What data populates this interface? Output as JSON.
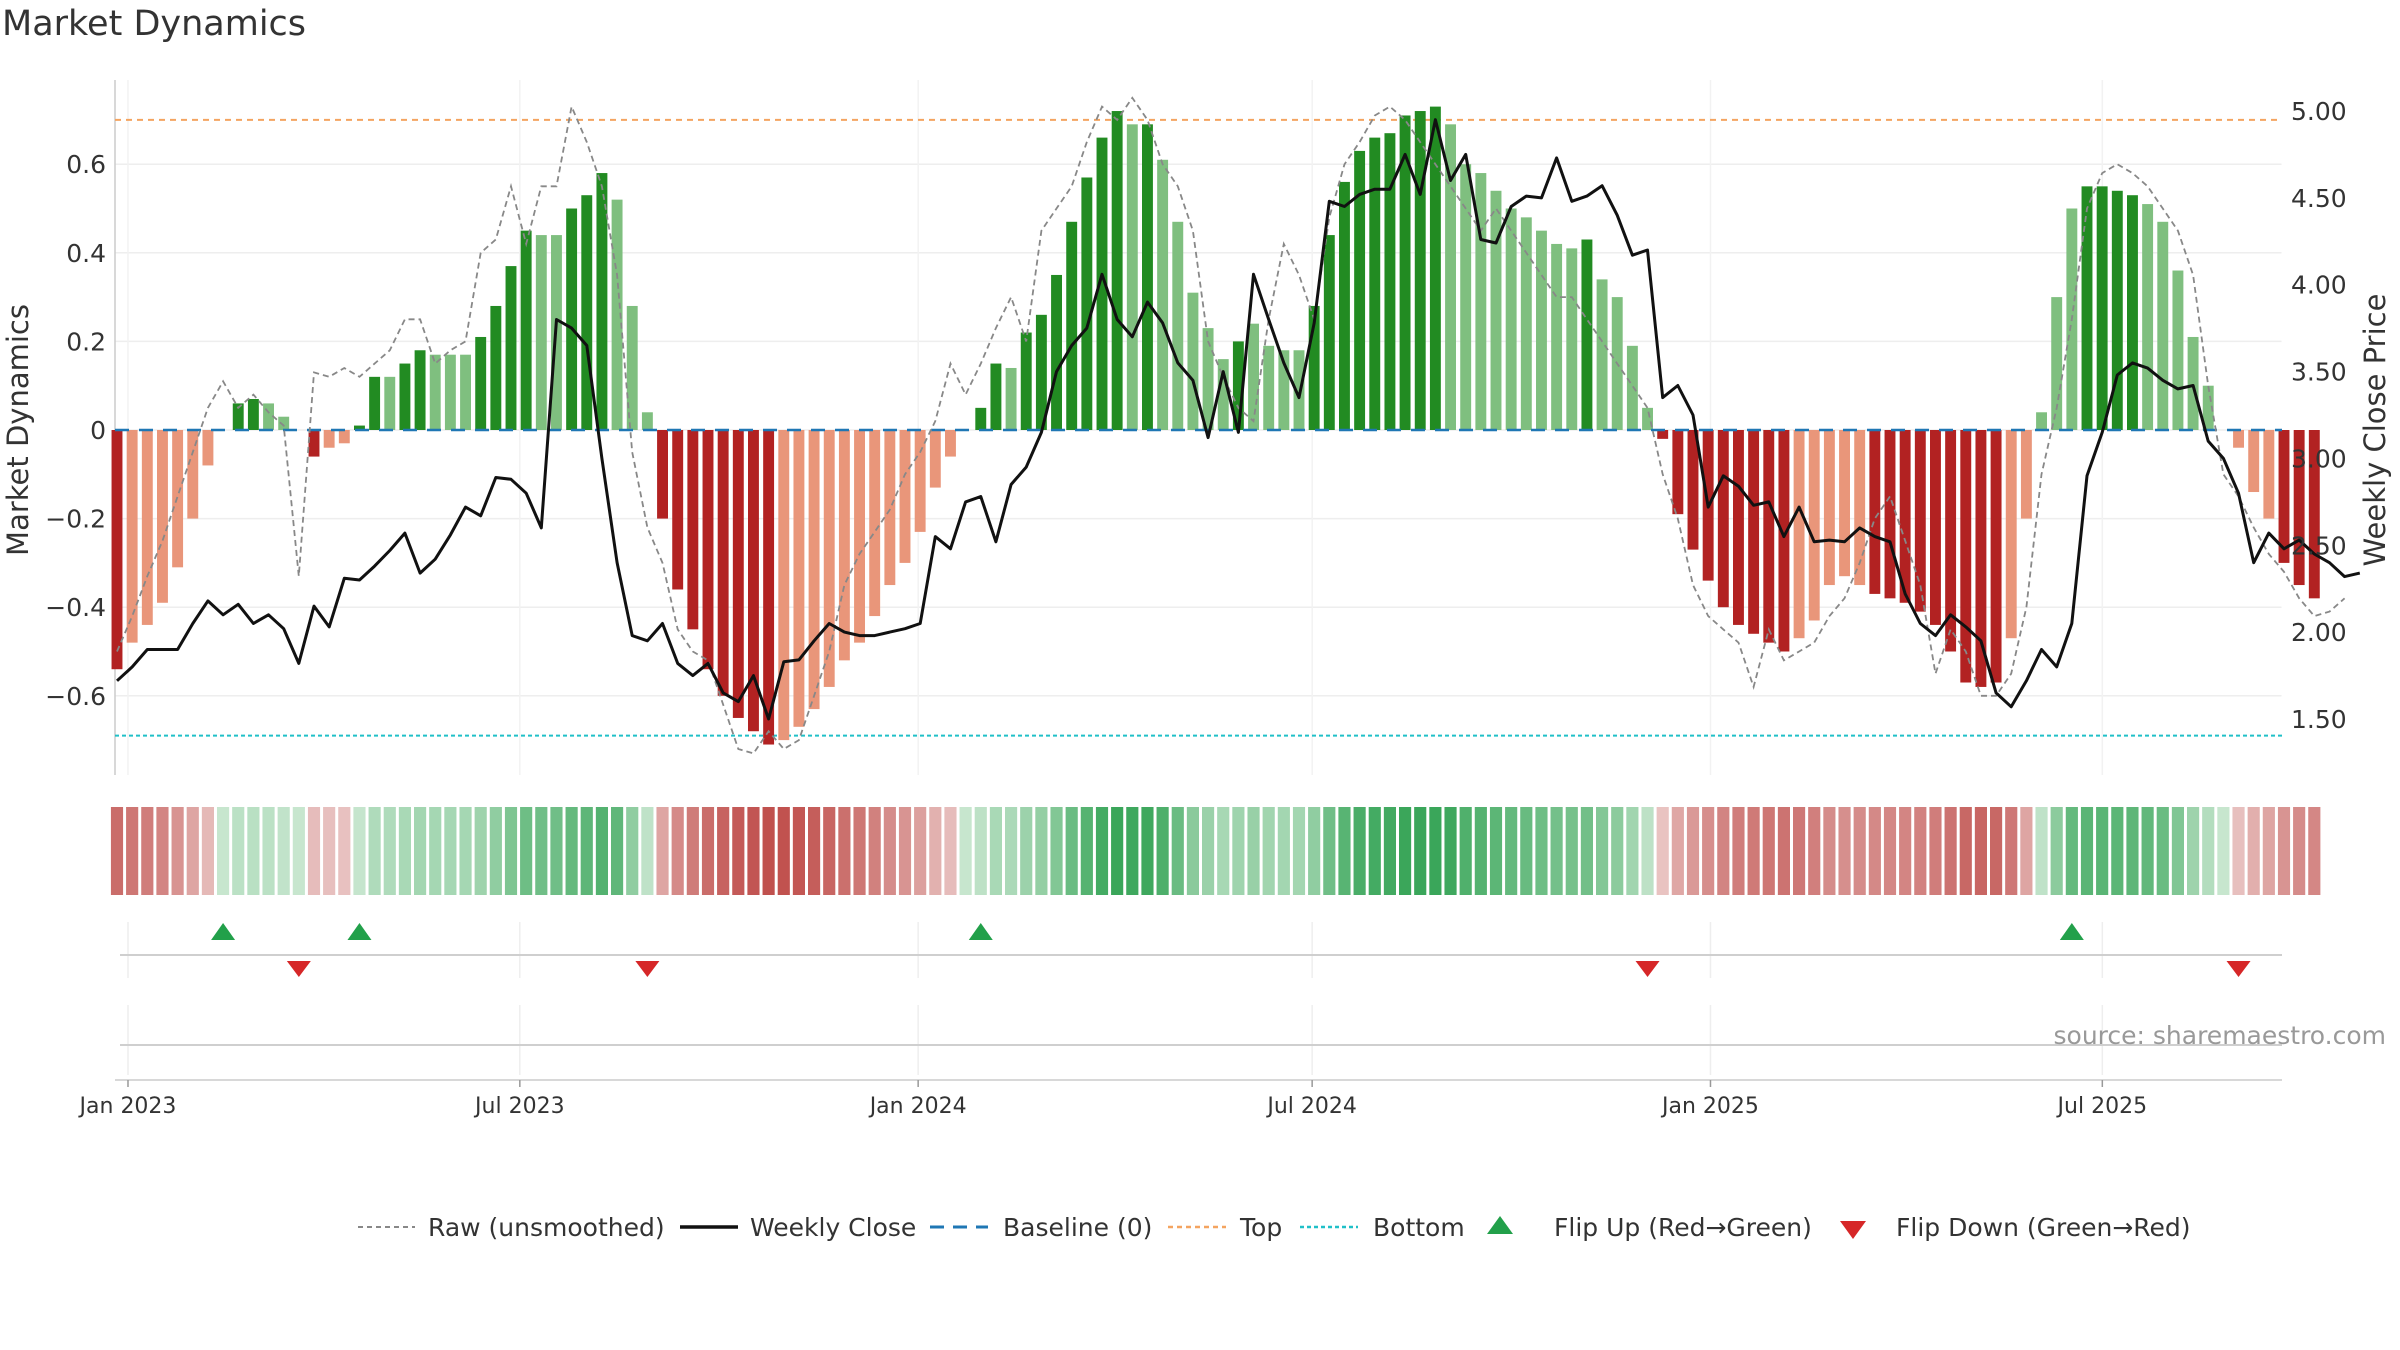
{
  "chart_data": {
    "type": "bar",
    "title": "Market Dynamics",
    "ylabel_left": "Market Dynamics",
    "ylabel_right": "Weekly Close Price",
    "source": "source: sharemaestro.com",
    "ylim_left": [
      -0.78,
      0.8
    ],
    "ylim_right": [
      1.15,
      5.3
    ],
    "left_ticks": [
      "0.6",
      "0.4",
      "0.2",
      "0",
      "−0.2",
      "−0.4",
      "−0.6"
    ],
    "right_ticks": [
      "5.00",
      "4.50",
      "4.00",
      "3.50",
      "3.00",
      "2.50",
      "2.00",
      "1.50"
    ],
    "x_ticks": [
      "Jan 2023",
      "Jul 2023",
      "Jan 2024",
      "Jul 2024",
      "Jan 2025",
      "Jul 2025"
    ],
    "x_range": [
      "2022-12-26",
      "2025-09-22"
    ],
    "week_start": "2022-12-26",
    "top_level": 0.7,
    "bottom_level": -0.69,
    "grid": true,
    "legend_position": "bottom",
    "legend": [
      "Raw (unsmoothed)",
      "Weekly Close",
      "Baseline (0)",
      "Top",
      "Bottom",
      "Flip Up (Red→Green)",
      "Flip Down (Green→Red)"
    ],
    "colors": {
      "green_dark": "#228b22",
      "green_light": "#7fbf7f",
      "red_dark": "#b22222",
      "red_light": "#e9967a",
      "close": "#111111",
      "raw": "#888888",
      "baseline": "#1f77b4",
      "top": "#f4a460",
      "bottom": "#20c0c8",
      "flip_up": "#22a04a",
      "flip_down": "#d62728"
    },
    "bars": [
      -0.54,
      -0.48,
      -0.44,
      -0.39,
      -0.31,
      -0.2,
      -0.08,
      0,
      0.06,
      0.07,
      0.06,
      0.03,
      0,
      -0.06,
      -0.04,
      -0.03,
      0.01,
      0.12,
      0.12,
      0.15,
      0.18,
      0.17,
      0.17,
      0.17,
      0.21,
      0.28,
      0.37,
      0.45,
      0.44,
      0.44,
      0.5,
      0.53,
      0.58,
      0.52,
      0.28,
      0.04,
      -0.2,
      -0.36,
      -0.45,
      -0.54,
      -0.6,
      -0.65,
      -0.68,
      -0.71,
      -0.7,
      -0.67,
      -0.63,
      -0.58,
      -0.52,
      -0.48,
      -0.42,
      -0.35,
      -0.3,
      -0.23,
      -0.13,
      -0.06,
      0,
      0.05,
      0.15,
      0.14,
      0.22,
      0.26,
      0.35,
      0.47,
      0.57,
      0.66,
      0.72,
      0.69,
      0.69,
      0.61,
      0.47,
      0.31,
      0.23,
      0.16,
      0.2,
      0.24,
      0.19,
      0.18,
      0.18,
      0.28,
      0.44,
      0.56,
      0.63,
      0.66,
      0.67,
      0.71,
      0.72,
      0.73,
      0.69,
      0.6,
      0.58,
      0.54,
      0.5,
      0.48,
      0.45,
      0.42,
      0.41,
      0.43,
      0.34,
      0.3,
      0.19,
      0.05,
      -0.02,
      -0.19,
      -0.27,
      -0.34,
      -0.4,
      -0.44,
      -0.46,
      -0.48,
      -0.5,
      -0.47,
      -0.43,
      -0.35,
      -0.33,
      -0.35,
      -0.37,
      -0.38,
      -0.39,
      -0.41,
      -0.44,
      -0.5,
      -0.57,
      -0.58,
      -0.57,
      -0.47,
      -0.2,
      0.04,
      0.3,
      0.5,
      0.55,
      0.55,
      0.54,
      0.53,
      0.51,
      0.47,
      0.36,
      0.21,
      0.1,
      0,
      -0.04,
      -0.14,
      -0.2,
      -0.3,
      -0.35,
      -0.38
    ],
    "bar_shades": [
      "d",
      "l",
      "l",
      "l",
      "l",
      "l",
      "l",
      "l",
      "d",
      "d",
      "l",
      "l",
      "l",
      "d",
      "l",
      "l",
      "d",
      "d",
      "l",
      "d",
      "d",
      "l",
      "l",
      "l",
      "d",
      "d",
      "d",
      "d",
      "l",
      "l",
      "d",
      "d",
      "d",
      "l",
      "l",
      "l",
      "d",
      "d",
      "d",
      "d",
      "d",
      "d",
      "d",
      "d",
      "l",
      "l",
      "l",
      "l",
      "l",
      "l",
      "l",
      "l",
      "l",
      "l",
      "l",
      "l",
      "l",
      "d",
      "d",
      "l",
      "d",
      "d",
      "d",
      "d",
      "d",
      "d",
      "d",
      "l",
      "d",
      "l",
      "l",
      "l",
      "l",
      "l",
      "d",
      "l",
      "l",
      "l",
      "l",
      "d",
      "d",
      "d",
      "d",
      "d",
      "d",
      "d",
      "d",
      "d",
      "l",
      "l",
      "l",
      "l",
      "l",
      "l",
      "l",
      "l",
      "l",
      "d",
      "l",
      "l",
      "l",
      "l",
      "d",
      "d",
      "d",
      "d",
      "d",
      "d",
      "d",
      "d",
      "d",
      "l",
      "l",
      "l",
      "l",
      "l",
      "d",
      "d",
      "d",
      "d",
      "d",
      "d",
      "d",
      "d",
      "d",
      "l",
      "l",
      "l",
      "l",
      "l",
      "d",
      "d",
      "d",
      "d",
      "l",
      "l",
      "l",
      "l",
      "l",
      "l",
      "l",
      "l",
      "l",
      "d",
      "d",
      "d",
      "d",
      "d"
    ],
    "raw": [
      -0.5,
      -0.42,
      -0.33,
      -0.25,
      -0.15,
      -0.05,
      0.05,
      0.11,
      0.05,
      0.08,
      0.04,
      0.01,
      -0.33,
      0.13,
      0.12,
      0.14,
      0.12,
      0.15,
      0.18,
      0.25,
      0.25,
      0.15,
      0.18,
      0.2,
      0.4,
      0.43,
      0.55,
      0.42,
      0.55,
      0.55,
      0.73,
      0.65,
      0.55,
      0.35,
      -0.05,
      -0.22,
      -0.3,
      -0.45,
      -0.5,
      -0.52,
      -0.62,
      -0.72,
      -0.73,
      -0.68,
      -0.72,
      -0.7,
      -0.6,
      -0.5,
      -0.35,
      -0.28,
      -0.23,
      -0.18,
      -0.1,
      -0.05,
      0.02,
      0.15,
      0.08,
      0.15,
      0.23,
      0.3,
      0.2,
      0.45,
      0.5,
      0.55,
      0.65,
      0.73,
      0.7,
      0.75,
      0.7,
      0.6,
      0.55,
      0.45,
      0.2,
      0.12,
      0.05,
      0.02,
      0.25,
      0.42,
      0.35,
      0.25,
      0.48,
      0.6,
      0.65,
      0.71,
      0.73,
      0.7,
      0.65,
      0.6,
      0.55,
      0.5,
      0.45,
      0.5,
      0.45,
      0.4,
      0.35,
      0.3,
      0.3,
      0.25,
      0.2,
      0.15,
      0.1,
      0.05,
      -0.1,
      -0.2,
      -0.35,
      -0.42,
      -0.45,
      -0.48,
      -0.58,
      -0.45,
      -0.52,
      -0.5,
      -0.48,
      -0.42,
      -0.38,
      -0.3,
      -0.2,
      -0.15,
      -0.25,
      -0.35,
      -0.55,
      -0.45,
      -0.5,
      -0.6,
      -0.6,
      -0.55,
      -0.4,
      -0.1,
      0.05,
      0.25,
      0.5,
      0.58,
      0.6,
      0.58,
      0.55,
      0.5,
      0.45,
      0.35,
      0.1,
      -0.1,
      -0.15,
      -0.22,
      -0.28,
      -0.32,
      -0.38,
      -0.42,
      -0.41,
      -0.38
    ],
    "close": [
      1.72,
      1.8,
      1.9,
      1.9,
      1.9,
      2.05,
      2.18,
      2.1,
      2.16,
      2.05,
      2.1,
      2.02,
      1.82,
      2.15,
      2.03,
      2.31,
      2.3,
      2.38,
      2.47,
      2.57,
      2.34,
      2.42,
      2.56,
      2.72,
      2.67,
      2.89,
      2.88,
      2.8,
      2.6,
      3.8,
      3.75,
      3.65,
      3.0,
      2.4,
      1.98,
      1.95,
      2.05,
      1.82,
      1.75,
      1.82,
      1.65,
      1.6,
      1.75,
      1.5,
      1.83,
      1.84,
      1.95,
      2.05,
      2.0,
      1.98,
      1.98,
      2.0,
      2.02,
      2.05,
      2.55,
      2.48,
      2.75,
      2.78,
      2.52,
      2.85,
      2.95,
      3.15,
      3.5,
      3.65,
      3.75,
      4.06,
      3.8,
      3.7,
      3.9,
      3.78,
      3.55,
      3.45,
      3.12,
      3.5,
      3.15,
      4.06,
      3.8,
      3.55,
      3.35,
      3.78,
      4.48,
      4.45,
      4.52,
      4.55,
      4.55,
      4.75,
      4.52,
      4.95,
      4.6,
      4.75,
      4.26,
      4.24,
      4.45,
      4.51,
      4.5,
      4.73,
      4.48,
      4.51,
      4.57,
      4.4,
      4.17,
      4.2,
      3.35,
      3.42,
      3.25,
      2.72,
      2.9,
      2.84,
      2.73,
      2.75,
      2.55,
      2.72,
      2.52,
      2.53,
      2.52,
      2.6,
      2.55,
      2.52,
      2.22,
      2.05,
      1.98,
      2.1,
      2.03,
      1.95,
      1.65,
      1.57,
      1.72,
      1.9,
      1.8,
      2.05,
      2.9,
      3.15,
      3.48,
      3.55,
      3.52,
      3.45,
      3.4,
      3.42,
      3.1,
      3.0,
      2.8,
      2.4,
      2.57,
      2.48,
      2.53,
      2.45,
      2.4,
      2.32,
      2.34
    ]
  },
  "flips": {
    "up": [
      7,
      16,
      57,
      129
    ],
    "down": [
      12,
      35,
      101,
      140
    ]
  }
}
